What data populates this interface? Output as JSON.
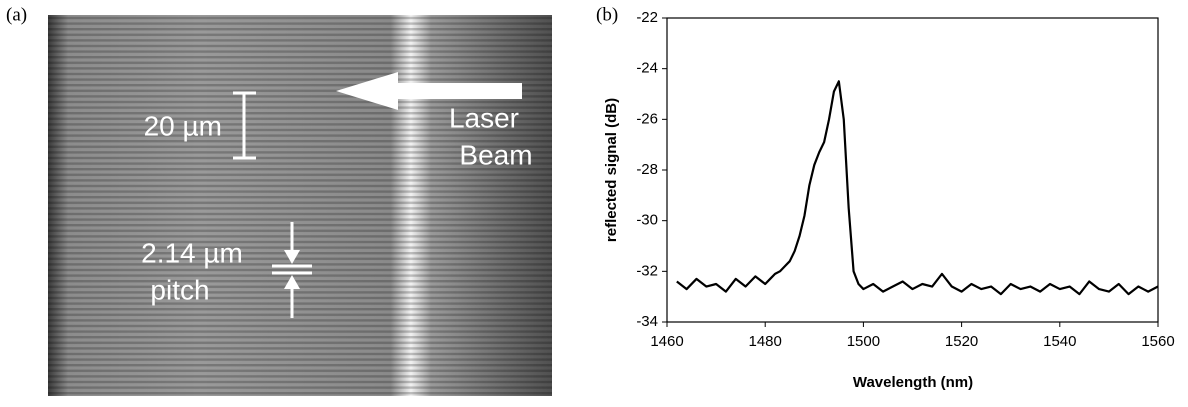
{
  "panel_a": {
    "label": "(a)",
    "scale_bar": "20 µm",
    "beam_line1": "Laser",
    "beam_line2": "Beam",
    "pitch_line1": "2.14 µm",
    "pitch_line2": "pitch"
  },
  "chart_data": {
    "type": "line",
    "panel_label": "(b)",
    "x_label": "Wavelength (nm)",
    "y_label": "reflected signal (dB)",
    "color": "#000000",
    "x": [
      1462,
      1464,
      1466,
      1468,
      1470,
      1472,
      1474,
      1476,
      1478,
      1480,
      1481,
      1482,
      1483,
      1484,
      1485,
      1486,
      1487,
      1488,
      1489,
      1490,
      1491,
      1492,
      1493,
      1494,
      1495,
      1496,
      1497,
      1498,
      1499,
      1500,
      1502,
      1504,
      1506,
      1508,
      1510,
      1512,
      1514,
      1516,
      1518,
      1520,
      1522,
      1524,
      1526,
      1528,
      1530,
      1532,
      1534,
      1536,
      1538,
      1540,
      1542,
      1544,
      1546,
      1548,
      1550,
      1552,
      1554,
      1556,
      1558,
      1560
    ],
    "values": [
      -32.4,
      -32.7,
      -32.3,
      -32.6,
      -32.5,
      -32.8,
      -32.3,
      -32.6,
      -32.2,
      -32.5,
      -32.3,
      -32.1,
      -32.0,
      -31.8,
      -31.6,
      -31.2,
      -30.6,
      -29.8,
      -28.6,
      -27.8,
      -27.3,
      -26.9,
      -26.0,
      -24.9,
      -24.5,
      -26.0,
      -29.5,
      -32.0,
      -32.5,
      -32.7,
      -32.5,
      -32.8,
      -32.6,
      -32.4,
      -32.7,
      -32.5,
      -32.6,
      -32.1,
      -32.6,
      -32.8,
      -32.5,
      -32.7,
      -32.6,
      -32.9,
      -32.5,
      -32.7,
      -32.6,
      -32.8,
      -32.5,
      -32.7,
      -32.6,
      -32.9,
      -32.4,
      -32.7,
      -32.8,
      -32.5,
      -32.9,
      -32.6,
      -32.8,
      -32.6
    ],
    "xlim": [
      1460,
      1560
    ],
    "xticks": [
      1460,
      1480,
      1500,
      1520,
      1540,
      1560
    ],
    "ylim": [
      -34,
      -22
    ],
    "yticks": [
      -34,
      -32,
      -30,
      -28,
      -26,
      -24,
      -22
    ]
  }
}
